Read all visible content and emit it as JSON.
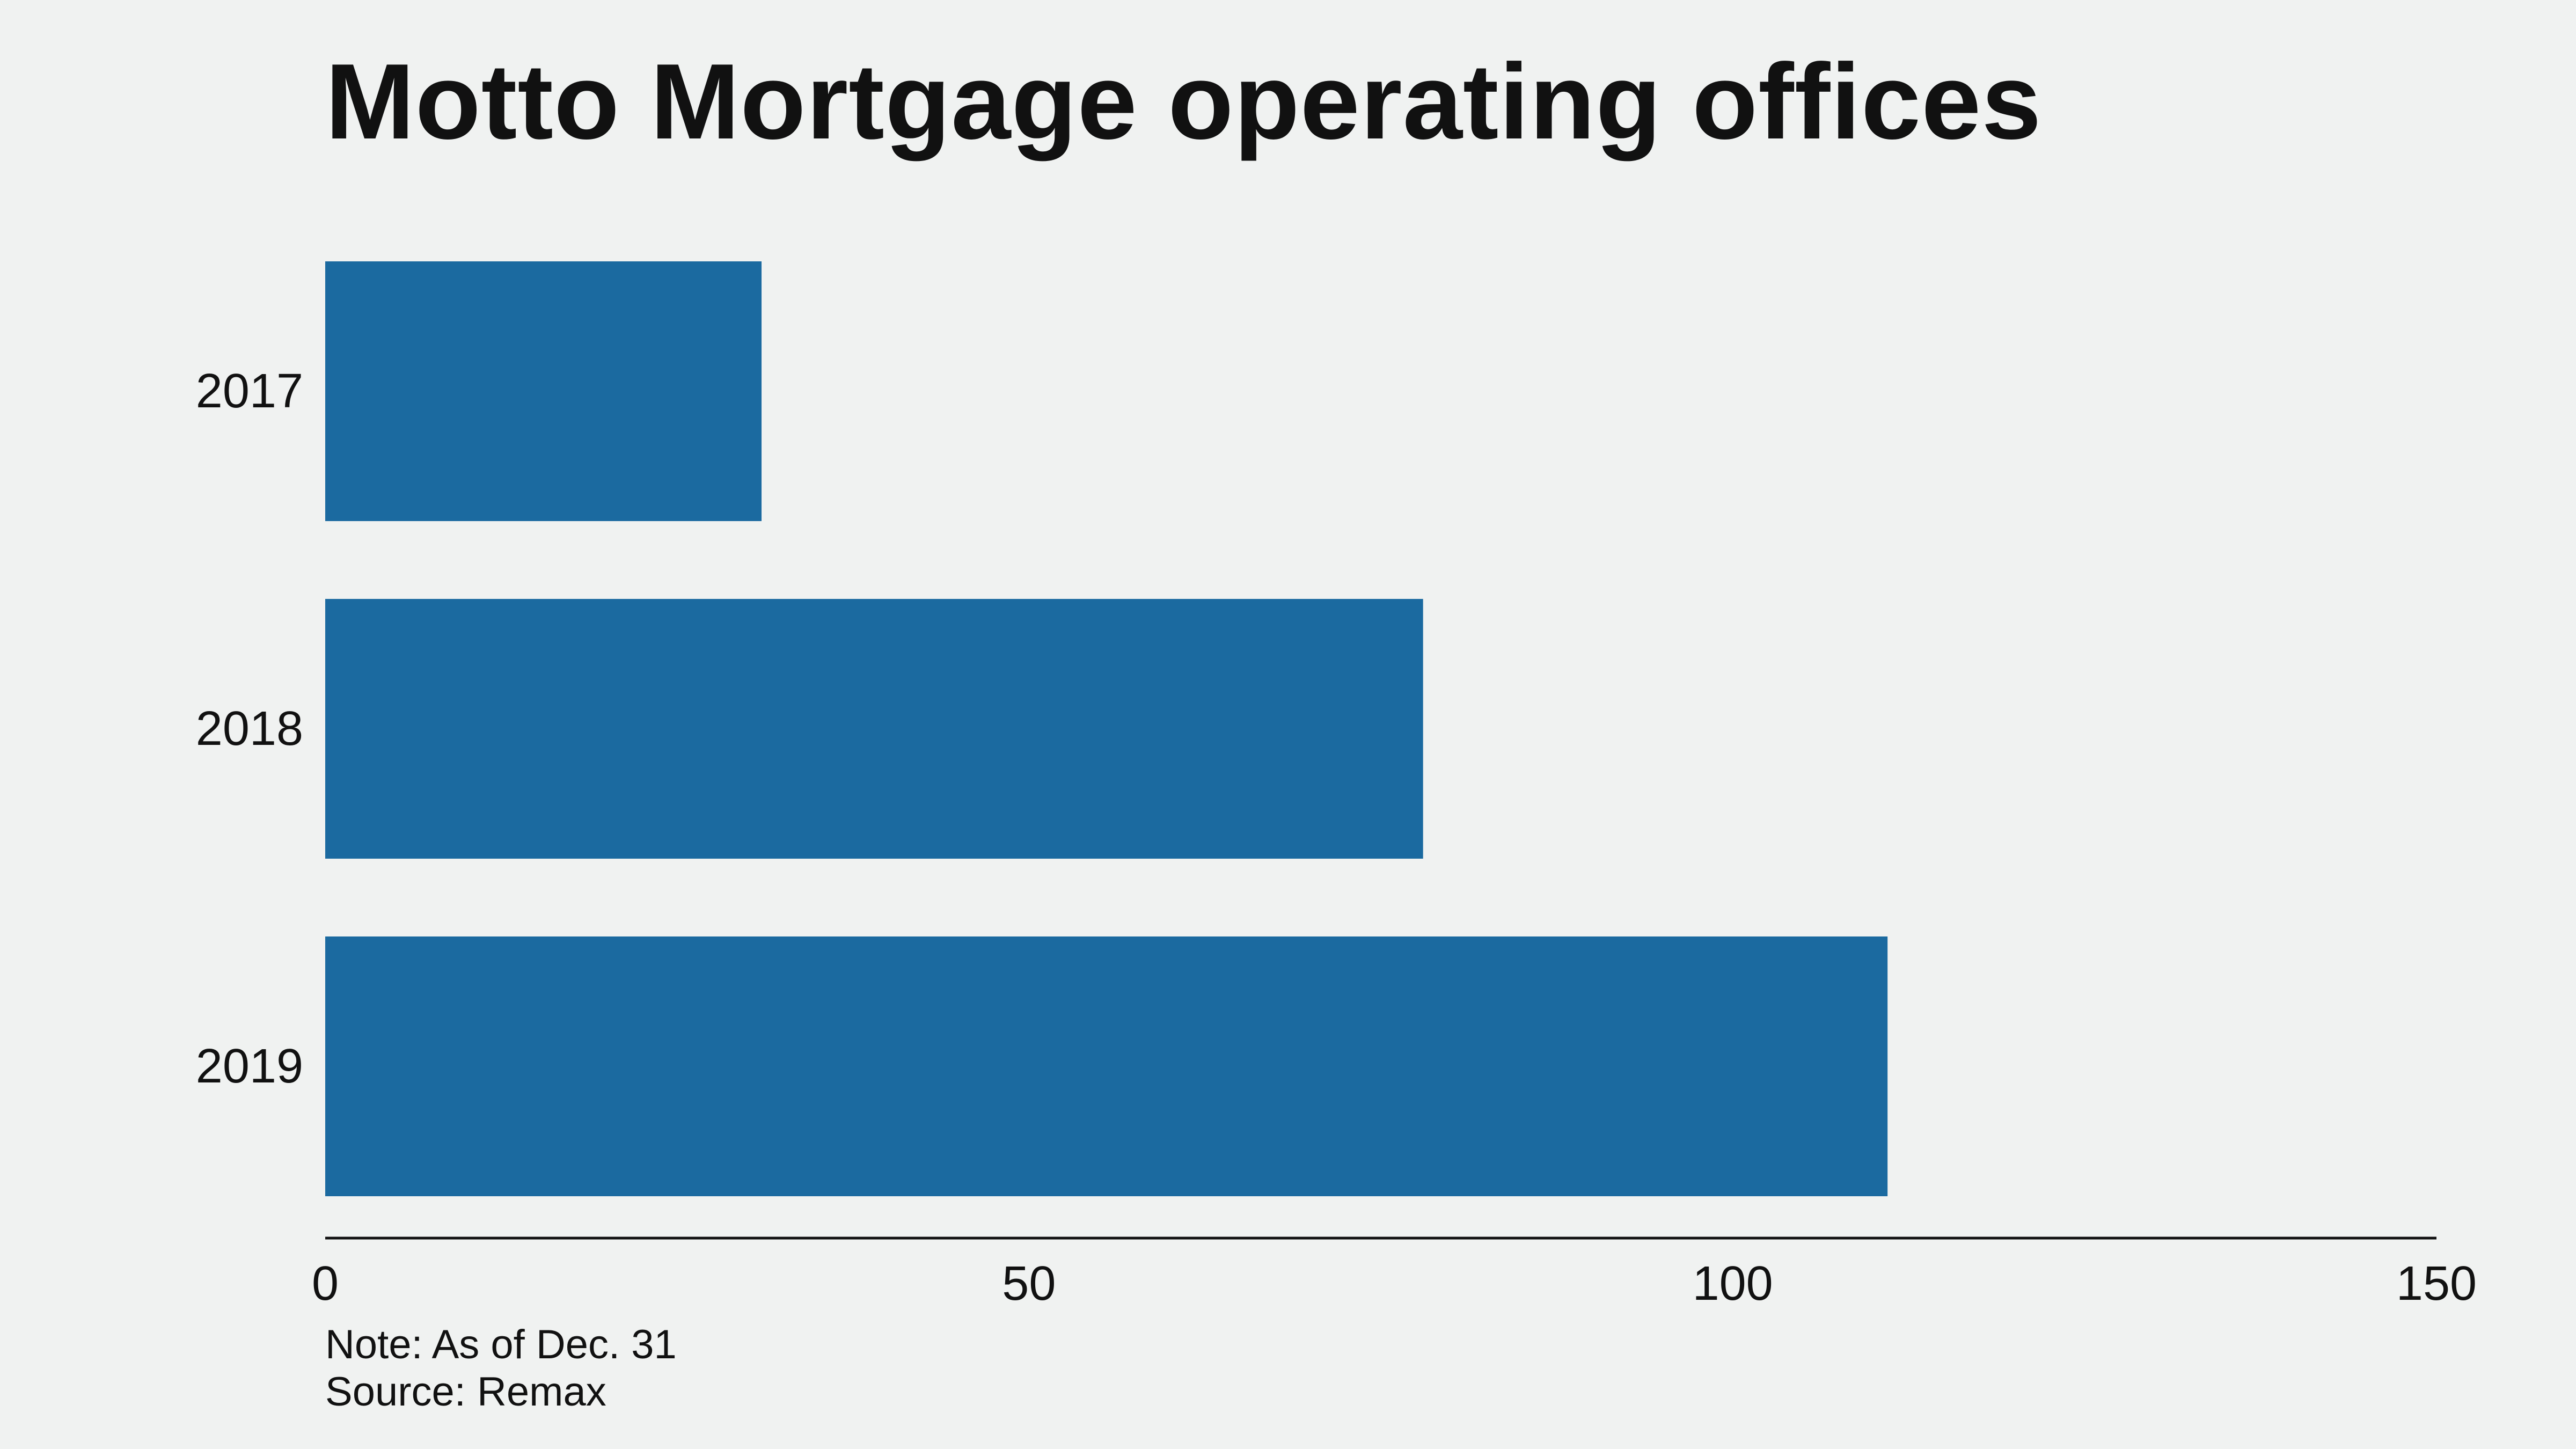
{
  "chart_data": {
    "type": "bar",
    "orientation": "horizontal",
    "title": "Motto Mortgage operating offices",
    "categories": [
      "2017",
      "2018",
      "2019"
    ],
    "values": [
      31,
      78,
      111
    ],
    "xlim": [
      0,
      150
    ],
    "xticks": [
      0,
      50,
      100,
      150
    ],
    "grid": false,
    "legend": "none",
    "bar_color": "#1b6aa0"
  },
  "notes": {
    "note": "Note: As of Dec. 31",
    "source": "Source: Remax"
  }
}
